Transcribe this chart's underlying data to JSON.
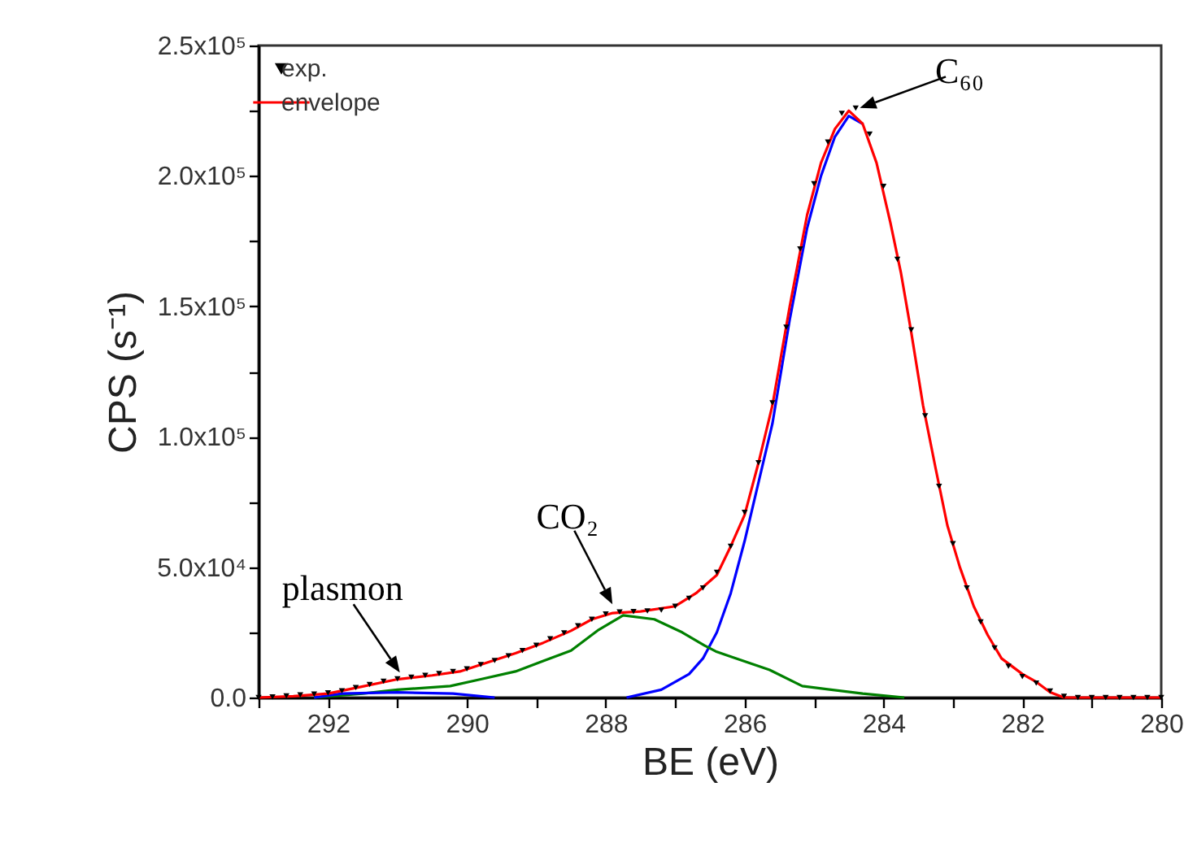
{
  "chart_data": {
    "type": "line",
    "xlabel": "BE (eV)",
    "ylabel": "CPS (s⁻¹)",
    "xlim": [
      293,
      280
    ],
    "ylim": [
      0,
      250000
    ],
    "xticks": [
      {
        "value": 293,
        "label": null
      },
      292,
      {
        "value": 291,
        "label": null
      },
      290,
      {
        "value": 289,
        "label": null
      },
      288,
      {
        "value": 287,
        "label": null
      },
      286,
      {
        "value": 285,
        "label": null
      },
      284,
      {
        "value": 283,
        "label": null
      },
      282,
      {
        "value": 281,
        "label": null
      },
      280
    ],
    "yticks": [
      {
        "value": 0,
        "label": "0.0"
      },
      {
        "value": 25000,
        "label": null
      },
      {
        "value": 50000,
        "label": "5.0x10⁴"
      },
      {
        "value": 75000,
        "label": null
      },
      {
        "value": 100000,
        "label": "1.0x10⁵"
      },
      {
        "value": 125000,
        "label": null
      },
      {
        "value": 150000,
        "label": "1.5x10⁵"
      },
      {
        "value": 175000,
        "label": null
      },
      {
        "value": 200000,
        "label": "2.0x10⁵"
      },
      {
        "value": 225000,
        "label": null
      },
      {
        "value": 250000,
        "label": "2.5x10⁵"
      }
    ],
    "legend": "top left",
    "series": [
      {
        "name": "exp.",
        "type": "scatter",
        "marker": "triangle",
        "color": "#000000",
        "x": [
          293,
          292.8,
          292.6,
          292.4,
          292.2,
          292,
          291.8,
          291.6,
          291.4,
          291.2,
          291,
          290.8,
          290.6,
          290.4,
          290.2,
          290,
          289.8,
          289.6,
          289.4,
          289.2,
          289,
          288.8,
          288.6,
          288.4,
          288.2,
          288,
          287.8,
          287.6,
          287.4,
          287.2,
          287,
          286.8,
          286.6,
          286.4,
          286.2,
          286,
          285.8,
          285.6,
          285.4,
          285.2,
          285,
          284.8,
          284.6,
          284.4,
          284.2,
          284,
          283.8,
          283.6,
          283.4,
          283.2,
          283,
          282.8,
          282.6,
          282.4,
          282.2,
          282,
          281.8,
          281.6,
          281.4,
          281.2,
          281,
          280.8,
          280.6,
          280.4,
          280.2,
          280
        ],
        "values": [
          0,
          200,
          600,
          1000,
          1300,
          1800,
          2600,
          3800,
          5000,
          6200,
          7200,
          7800,
          8500,
          9200,
          10000,
          11000,
          12600,
          14200,
          16000,
          18000,
          20000,
          22500,
          24800,
          27500,
          30000,
          32000,
          32800,
          33000,
          33200,
          33500,
          35000,
          38000,
          42000,
          48000,
          58000,
          71000,
          90000,
          113000,
          142000,
          172000,
          197000,
          213000,
          224000,
          226000,
          216000,
          196000,
          168000,
          141000,
          108000,
          81000,
          59000,
          42000,
          29000,
          19000,
          12000,
          8000,
          5500,
          2500,
          500,
          0,
          0,
          0,
          0,
          0,
          0,
          0
        ]
      },
      {
        "name": "envelope",
        "type": "line",
        "color": "#ff0000",
        "x": [
          293,
          292.5,
          292,
          291.6,
          291,
          290.5,
          290.1,
          289.7,
          289.3,
          288.9,
          288.5,
          288.2,
          287.9,
          287.5,
          287,
          286.7,
          286.4,
          286.2,
          286,
          285.8,
          285.6,
          285.35,
          285.1,
          284.9,
          284.7,
          284.5,
          284.3,
          284.1,
          283.9,
          283.75,
          283.6,
          283.43,
          283.25,
          283.08,
          282.9,
          282.7,
          282.5,
          282.3,
          282,
          281.8,
          281.6,
          281.4,
          280
        ],
        "values": [
          0,
          500,
          1500,
          3700,
          7000,
          8500,
          10000,
          13500,
          17000,
          21000,
          25600,
          30000,
          32400,
          33000,
          35000,
          40000,
          47000,
          58000,
          70000,
          90000,
          112000,
          150000,
          185000,
          205000,
          218000,
          225000,
          220000,
          205000,
          182000,
          163000,
          140000,
          112000,
          88000,
          66000,
          50000,
          35000,
          24000,
          15000,
          9000,
          6000,
          2000,
          0,
          0
        ]
      },
      {
        "type": "line",
        "color": "#0000ff",
        "x": [
          287.7,
          287.2,
          286.8,
          286.6,
          286.4,
          286.2,
          286,
          285.6,
          285.35,
          285.1,
          284.9,
          284.7,
          284.5,
          284.3
        ],
        "values": [
          0,
          3000,
          9000,
          15000,
          25000,
          40000,
          60000,
          105000,
          145000,
          180000,
          200000,
          215000,
          223000,
          220000
        ]
      },
      {
        "type": "line",
        "color": "#008000",
        "x": [
          292.2,
          291.5,
          291,
          290.24,
          289.8,
          289.3,
          288.9,
          288.5,
          288.1,
          287.75,
          287.3,
          286.9,
          286.58,
          286.4,
          286.18,
          285.64,
          285.17,
          284.3,
          283.7
        ],
        "values": [
          0,
          1500,
          3000,
          4400,
          7000,
          10000,
          14000,
          18000,
          26000,
          31500,
          30000,
          25000,
          20000,
          17500,
          15500,
          10600,
          4400,
          1500,
          0
        ]
      },
      {
        "type": "line",
        "color": "#0000ff",
        "x": [
          292.2,
          291.8,
          291,
          290.2,
          289.6
        ],
        "values": [
          0,
          1500,
          2000,
          1500,
          0
        ]
      }
    ],
    "annotations": [
      {
        "text": "C₆₀",
        "x": 284.45,
        "y": 225000
      },
      {
        "text": "CO₂",
        "x": 287.85,
        "y": 33000
      },
      {
        "text": "plasmon",
        "x": 290.9,
        "y": 7000
      }
    ]
  }
}
